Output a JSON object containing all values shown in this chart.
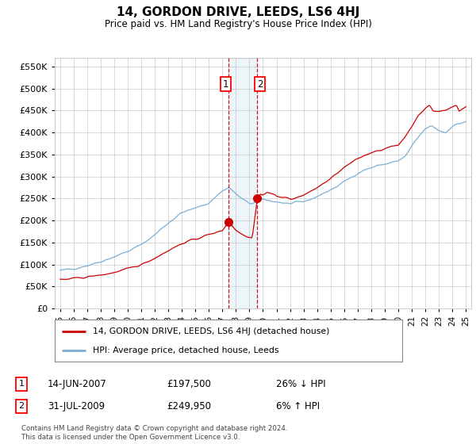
{
  "title": "14, GORDON DRIVE, LEEDS, LS6 4HJ",
  "subtitle": "Price paid vs. HM Land Registry's House Price Index (HPI)",
  "footer": "Contains HM Land Registry data © Crown copyright and database right 2024.\nThis data is licensed under the Open Government Licence v3.0.",
  "legend_line1": "14, GORDON DRIVE, LEEDS, LS6 4HJ (detached house)",
  "legend_line2": "HPI: Average price, detached house, Leeds",
  "transaction1_date": "14-JUN-2007",
  "transaction1_price": "£197,500",
  "transaction1_hpi": "26% ↓ HPI",
  "transaction2_date": "31-JUL-2009",
  "transaction2_price": "£249,950",
  "transaction2_hpi": "6% ↑ HPI",
  "hpi_color": "#7bafd4",
  "price_color": "#cc0000",
  "marker1_x": 2007.45,
  "marker1_y": 197500,
  "marker2_x": 2009.58,
  "marker2_y": 249950,
  "vline1_x": 2007.45,
  "vline2_x": 2009.58,
  "ylim_min": 0,
  "ylim_max": 570000,
  "xlim_min": 1994.6,
  "xlim_max": 2025.4,
  "yticks": [
    0,
    50000,
    100000,
    150000,
    200000,
    250000,
    300000,
    350000,
    400000,
    450000,
    500000,
    550000
  ],
  "background_color": "#ffffff",
  "grid_color": "#cccccc"
}
